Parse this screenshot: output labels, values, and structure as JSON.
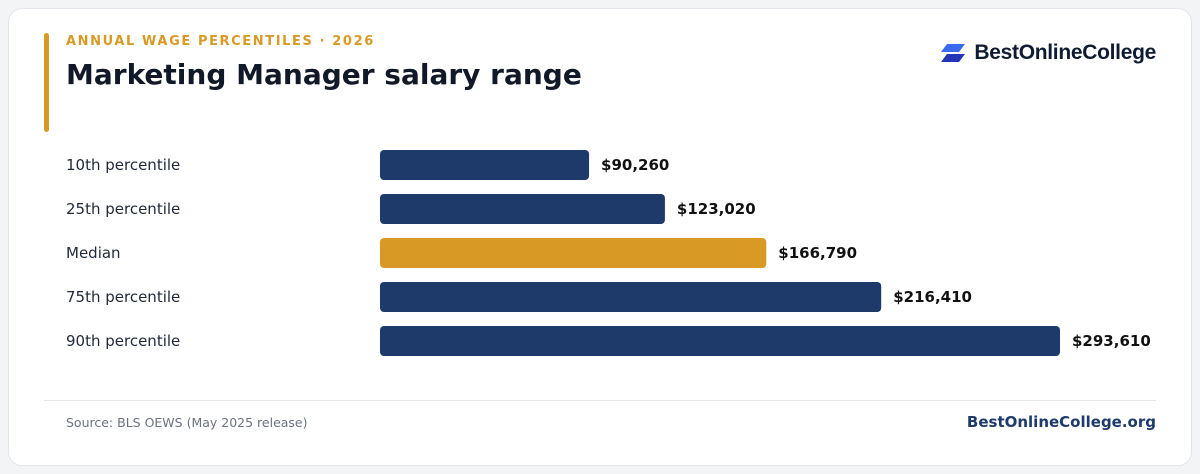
{
  "header": {
    "eyebrow": "ANNUAL WAGE PERCENTILES · 2026",
    "title": "Marketing Manager salary range"
  },
  "brand": {
    "logo_icon": "stacked-parallelogram-icon",
    "name": "BestOnlineCollege"
  },
  "footer": {
    "source": "Source: BLS OEWS (May 2025 release)",
    "site": "BestOnlineCollege.org"
  },
  "colors": {
    "primary_bar": "#1d3a6b",
    "highlight_bar": "#d89a24",
    "accent": "#d89a24",
    "logo_blue": "#2c4bd9"
  },
  "chart_data": {
    "type": "bar",
    "orientation": "horizontal",
    "categories": [
      "10th percentile",
      "25th percentile",
      "Median",
      "75th percentile",
      "90th percentile"
    ],
    "values": [
      90260,
      123020,
      166790,
      216410,
      293610
    ],
    "value_labels": [
      "$90,260",
      "$123,020",
      "$166,790",
      "$216,410",
      "$293,610"
    ],
    "highlight": "Median",
    "xlim": [
      0,
      293610
    ],
    "grid": false,
    "legend": "none"
  }
}
